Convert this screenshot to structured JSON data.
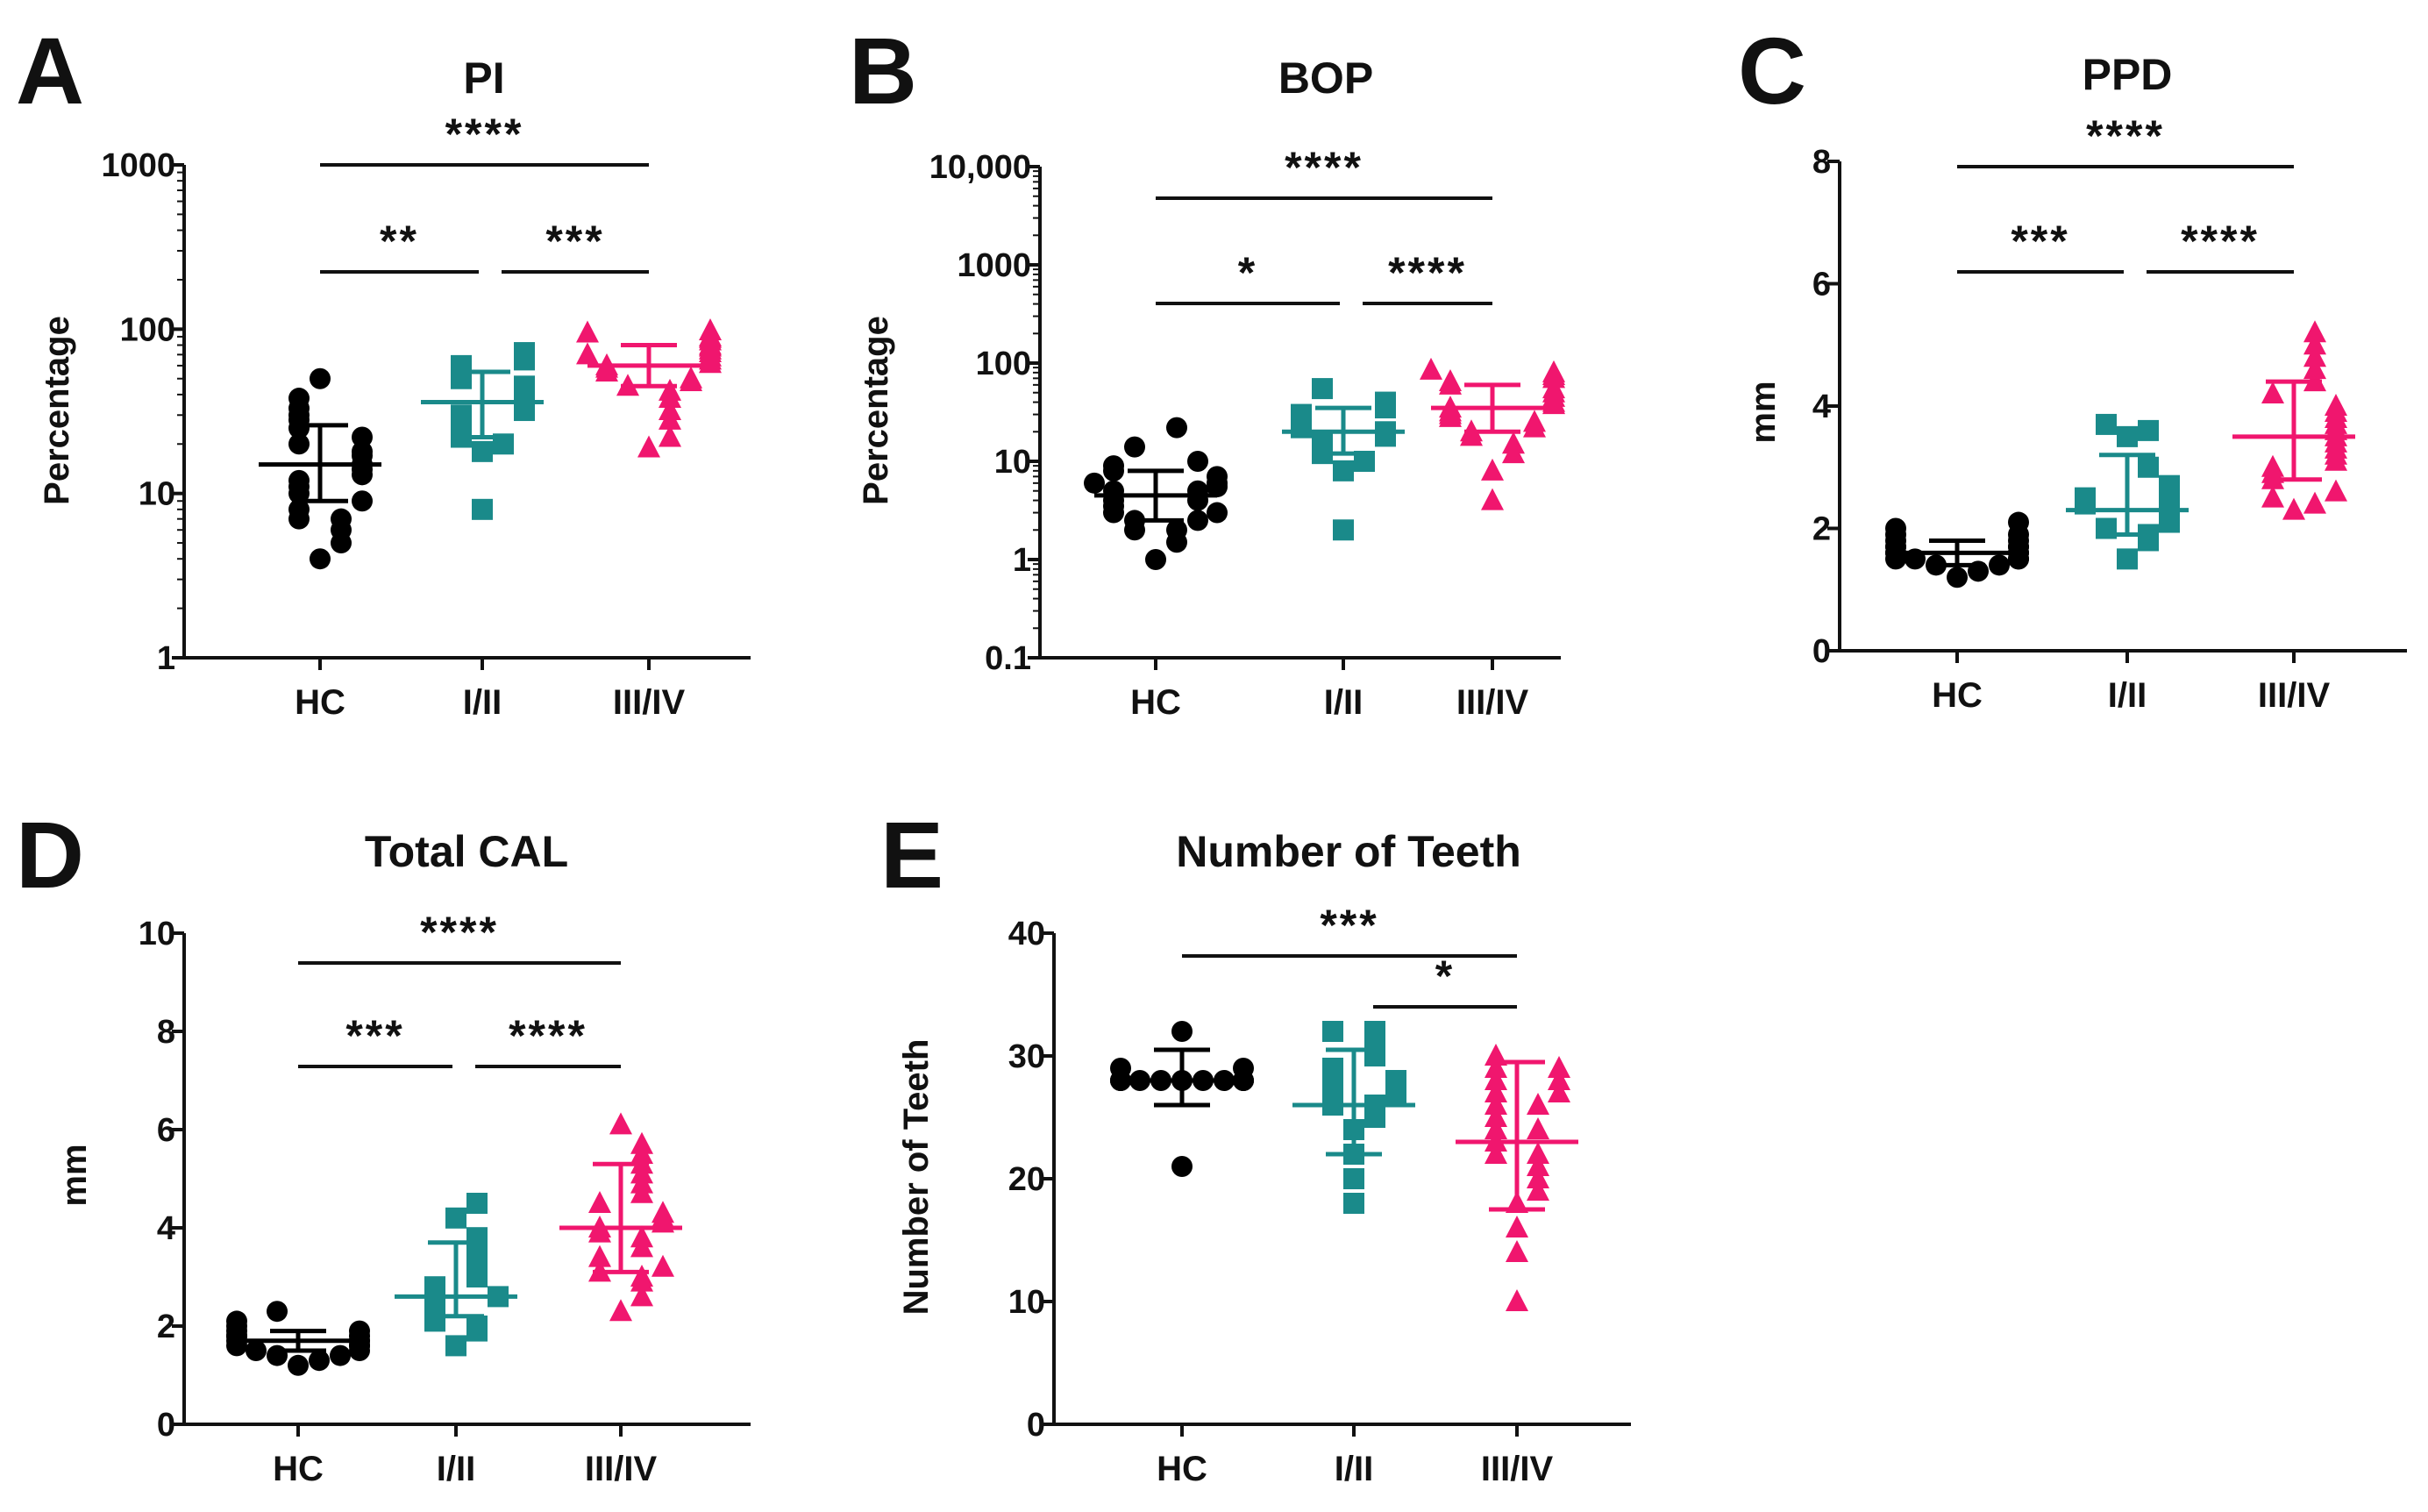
{
  "colors": {
    "HC": "#000000",
    "I/II": "#1a8a8a",
    "III/IV": "#f0166e",
    "axis": "#111111"
  },
  "chart_data": [
    {
      "panel": "A",
      "type": "scatter",
      "title": "PI",
      "xlabel": "",
      "ylabel": "Percentage",
      "yscale": "log",
      "ylim": [
        1,
        1000
      ],
      "yticks": [
        1,
        10,
        100,
        1000
      ],
      "ytick_labels": [
        "1",
        "10",
        "100",
        "1000"
      ],
      "categories": [
        "HC",
        "I/II",
        "III/IV"
      ],
      "series": [
        {
          "name": "HC",
          "marker": "circle",
          "center": 15,
          "err_low": 9,
          "err_high": 26,
          "values": [
            4,
            5,
            6,
            7,
            7,
            8,
            9,
            10,
            11,
            12,
            13,
            14,
            15,
            17,
            18,
            20,
            22,
            25,
            28,
            30,
            33,
            38,
            50
          ]
        },
        {
          "name": "I/II",
          "marker": "square",
          "center": 36,
          "err_low": 22,
          "err_high": 55,
          "values": [
            8,
            18,
            20,
            22,
            25,
            28,
            30,
            32,
            35,
            38,
            40,
            45,
            50,
            55,
            60,
            65,
            72
          ]
        },
        {
          "name": "III/IV",
          "marker": "triangle",
          "center": 60,
          "err_low": 45,
          "err_high": 80,
          "values": [
            19,
            22,
            28,
            32,
            38,
            42,
            45,
            48,
            50,
            55,
            58,
            60,
            62,
            65,
            68,
            70,
            72,
            75,
            78,
            80,
            85,
            88,
            90,
            95,
            98
          ]
        }
      ],
      "significance": [
        {
          "from": 0,
          "to": 2,
          "label": "****"
        },
        {
          "from": 0,
          "to": 1,
          "label": "**"
        },
        {
          "from": 1,
          "to": 2,
          "label": "***"
        }
      ]
    },
    {
      "panel": "B",
      "type": "scatter",
      "title": "BOP",
      "xlabel": "",
      "ylabel": "Percentage",
      "yscale": "log",
      "ylim": [
        0.1,
        10000
      ],
      "yticks": [
        0.1,
        1,
        10,
        100,
        1000,
        10000
      ],
      "ytick_labels": [
        "0.1",
        "1",
        "10",
        "100",
        "1000",
        "10,000"
      ],
      "categories": [
        "HC",
        "I/II",
        "III/IV"
      ],
      "series": [
        {
          "name": "HC",
          "marker": "circle",
          "center": 4.5,
          "err_low": 2.5,
          "err_high": 8,
          "values": [
            1,
            1.5,
            2,
            2,
            2.5,
            2.5,
            3,
            3,
            3.5,
            4,
            4,
            5,
            5,
            5.5,
            6,
            6,
            7,
            8,
            9,
            10,
            14,
            22
          ]
        },
        {
          "name": "I/II",
          "marker": "square",
          "center": 20,
          "err_low": 12,
          "err_high": 35,
          "values": [
            2,
            8,
            10,
            12,
            14,
            16,
            18,
            20,
            22,
            25,
            28,
            30,
            35,
            40,
            55
          ]
        },
        {
          "name": "III/IV",
          "marker": "triangle",
          "center": 35,
          "err_low": 20,
          "err_high": 60,
          "values": [
            4,
            8,
            12,
            15,
            18,
            20,
            22,
            25,
            28,
            30,
            32,
            35,
            38,
            40,
            45,
            50,
            55,
            60,
            65,
            70,
            75,
            80,
            85
          ]
        }
      ],
      "significance": [
        {
          "from": 0,
          "to": 2,
          "label": "****"
        },
        {
          "from": 0,
          "to": 1,
          "label": "*"
        },
        {
          "from": 1,
          "to": 2,
          "label": "****"
        }
      ]
    },
    {
      "panel": "C",
      "type": "scatter",
      "title": "PPD",
      "xlabel": "",
      "ylabel": "mm",
      "yscale": "linear",
      "ylim": [
        0,
        8
      ],
      "yticks": [
        0,
        2,
        4,
        6,
        8
      ],
      "ytick_labels": [
        "0",
        "2",
        "4",
        "6",
        "8"
      ],
      "categories": [
        "HC",
        "I/II",
        "III/IV"
      ],
      "series": [
        {
          "name": "HC",
          "marker": "circle",
          "center": 1.6,
          "err_low": 1.4,
          "err_high": 1.8,
          "values": [
            1.2,
            1.3,
            1.4,
            1.4,
            1.5,
            1.5,
            1.5,
            1.6,
            1.6,
            1.6,
            1.7,
            1.7,
            1.7,
            1.8,
            1.8,
            1.9,
            1.9,
            2.0,
            2.1,
            1.5,
            1.6,
            1.7
          ]
        },
        {
          "name": "I/II",
          "marker": "square",
          "center": 2.3,
          "err_low": 1.9,
          "err_high": 3.2,
          "values": [
            1.5,
            1.8,
            1.9,
            2.0,
            2.1,
            2.2,
            2.3,
            2.4,
            2.4,
            2.5,
            2.7,
            3.0,
            3.5,
            3.6,
            3.7
          ]
        },
        {
          "name": "III/IV",
          "marker": "triangle",
          "center": 3.5,
          "err_low": 2.8,
          "err_high": 4.4,
          "values": [
            2.3,
            2.4,
            2.6,
            2.8,
            2.9,
            3.0,
            3.1,
            3.2,
            3.3,
            3.4,
            3.5,
            3.6,
            3.7,
            3.8,
            3.9,
            4.0,
            4.2,
            4.4,
            4.6,
            4.8,
            5.0,
            5.2,
            2.5
          ]
        }
      ],
      "significance": [
        {
          "from": 0,
          "to": 2,
          "label": "****"
        },
        {
          "from": 0,
          "to": 1,
          "label": "***"
        },
        {
          "from": 1,
          "to": 2,
          "label": "****"
        }
      ]
    },
    {
      "panel": "D",
      "type": "scatter",
      "title": "Total CAL",
      "xlabel": "",
      "ylabel": "mm",
      "yscale": "linear",
      "ylim": [
        0,
        10
      ],
      "yticks": [
        0,
        2,
        4,
        6,
        8,
        10
      ],
      "ytick_labels": [
        "0",
        "2",
        "4",
        "6",
        "8",
        "10"
      ],
      "categories": [
        "HC",
        "I/II",
        "III/IV"
      ],
      "series": [
        {
          "name": "HC",
          "marker": "circle",
          "center": 1.7,
          "err_low": 1.5,
          "err_high": 1.9,
          "values": [
            1.2,
            1.3,
            1.4,
            1.4,
            1.5,
            1.5,
            1.6,
            1.6,
            1.7,
            1.7,
            1.7,
            1.8,
            1.8,
            1.9,
            1.9,
            2.0,
            2.1,
            2.3,
            1.6,
            1.8
          ]
        },
        {
          "name": "I/II",
          "marker": "square",
          "center": 2.6,
          "err_low": 2.2,
          "err_high": 3.7,
          "values": [
            1.6,
            1.9,
            2.0,
            2.1,
            2.3,
            2.4,
            2.5,
            2.6,
            2.8,
            3.0,
            3.3,
            3.6,
            3.8,
            4.2,
            4.5
          ]
        },
        {
          "name": "III/IV",
          "marker": "triangle",
          "center": 4.0,
          "err_low": 3.1,
          "err_high": 5.3,
          "values": [
            2.3,
            2.6,
            2.9,
            3.1,
            3.2,
            3.4,
            3.6,
            3.8,
            3.9,
            4.0,
            4.1,
            4.3,
            4.5,
            4.7,
            4.9,
            5.1,
            5.3,
            5.5,
            5.7,
            6.1,
            3.0,
            4.2
          ]
        }
      ],
      "significance": [
        {
          "from": 0,
          "to": 2,
          "label": "****"
        },
        {
          "from": 0,
          "to": 1,
          "label": "***"
        },
        {
          "from": 1,
          "to": 2,
          "label": "****"
        }
      ]
    },
    {
      "panel": "E",
      "type": "scatter",
      "title": "Number of Teeth",
      "xlabel": "",
      "ylabel": "Number of Teeth",
      "yscale": "linear",
      "ylim": [
        0,
        40
      ],
      "yticks": [
        0,
        10,
        20,
        30,
        40
      ],
      "ytick_labels": [
        "0",
        "10",
        "20",
        "30",
        "40"
      ],
      "categories": [
        "HC",
        "I/II",
        "III/IV"
      ],
      "series": [
        {
          "name": "HC",
          "marker": "circle",
          "center": 28,
          "err_low": 26,
          "err_high": 30.5,
          "values": [
            21,
            28,
            28,
            28,
            28,
            28,
            28,
            28,
            28,
            28,
            28,
            28,
            29,
            29,
            32
          ]
        },
        {
          "name": "I/II",
          "marker": "square",
          "center": 26,
          "err_low": 22,
          "err_high": 30.5,
          "values": [
            18,
            20,
            22,
            24,
            25,
            26,
            26,
            27,
            27,
            28,
            28,
            29,
            30,
            31,
            32,
            32
          ]
        },
        {
          "name": "III/IV",
          "marker": "triangle",
          "center": 23,
          "err_low": 17.5,
          "err_high": 29.5,
          "values": [
            10,
            14,
            16,
            18,
            19,
            20,
            21,
            22,
            22,
            23,
            24,
            24,
            25,
            26,
            26,
            27,
            27,
            28,
            28,
            29,
            29,
            30
          ]
        }
      ],
      "significance": [
        {
          "from": 0,
          "to": 2,
          "label": "***"
        },
        {
          "from": 1,
          "to": 2,
          "label": "*"
        }
      ]
    }
  ]
}
